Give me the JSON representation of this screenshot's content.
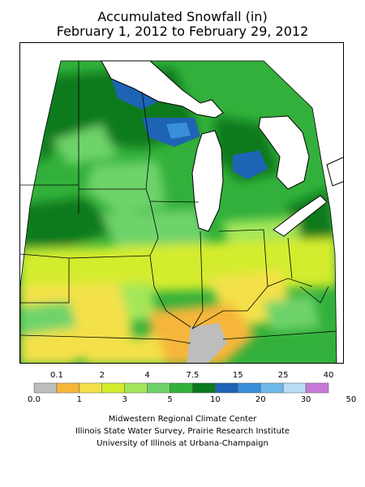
{
  "title_line1": "Accumulated Snowfall (in)",
  "title_line2": "February 1, 2012 to February 29, 2012",
  "legend": {
    "top_labels": [
      "0.1",
      "2",
      "4",
      "7.5",
      "15",
      "25",
      "40"
    ],
    "bottom_labels": [
      "0.0",
      "1",
      "3",
      "5",
      "10",
      "20",
      "30",
      "50"
    ],
    "colors": [
      "#bdbdbd",
      "#f6b63a",
      "#f4e14a",
      "#d4ec2e",
      "#a4e65a",
      "#6ed36a",
      "#33b03b",
      "#0b7a1c",
      "#1e64b4",
      "#3a8fd8",
      "#6fb8ea",
      "#b8ddf5",
      "#c77ad8"
    ]
  },
  "credits": [
    "Midwestern Regional Climate Center",
    "Illinois State Water Survey, Prairie Research Institute",
    "University of Illinois at Urbana-Champaign"
  ]
}
